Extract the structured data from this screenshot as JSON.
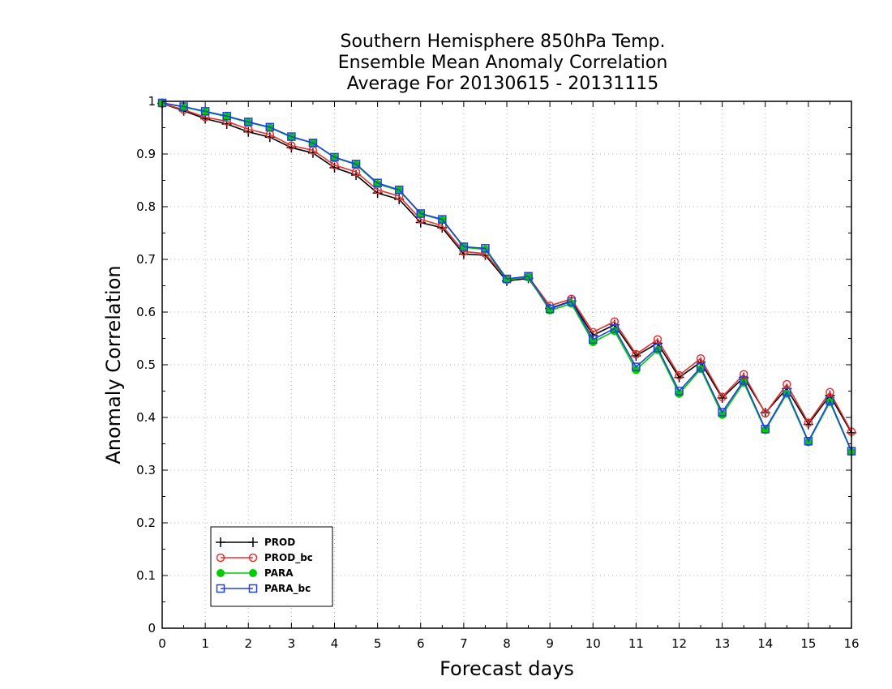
{
  "chart_data": {
    "type": "line",
    "title": [
      "Southern Hemisphere 850hPa Temp.",
      "Ensemble Mean Anomaly Correlation",
      "Average For 20130615 - 20131115"
    ],
    "xlabel": "Forecast days",
    "ylabel": "Anomaly Correlation",
    "xlim": [
      0,
      16
    ],
    "ylim": [
      0,
      1
    ],
    "xticks": [
      0,
      1,
      2,
      3,
      4,
      5,
      6,
      7,
      8,
      9,
      10,
      11,
      12,
      13,
      14,
      15,
      16
    ],
    "yticks": [
      0,
      0.1,
      0.2,
      0.3,
      0.4,
      0.5,
      0.6,
      0.7,
      0.8,
      0.9,
      1
    ],
    "xtick_labels": [
      "0",
      "1",
      "2",
      "3",
      "4",
      "5",
      "6",
      "7",
      "8",
      "9",
      "10",
      "11",
      "12",
      "13",
      "14",
      "15",
      "16"
    ],
    "ytick_labels": [
      "0",
      "0.1",
      "0.2",
      "0.3",
      "0.4",
      "0.5",
      "0.6",
      "0.7",
      "0.8",
      "0.9",
      "1"
    ],
    "grid": true,
    "legend_position": "bottom-left",
    "x": [
      0,
      0.5,
      1,
      1.5,
      2,
      2.5,
      3,
      3.5,
      4,
      4.5,
      5,
      5.5,
      6,
      6.5,
      7,
      7.5,
      8,
      8.5,
      9,
      9.5,
      10,
      10.5,
      11,
      11.5,
      12,
      12.5,
      13,
      13.5,
      14,
      14.5,
      15,
      15.5,
      16
    ],
    "series": [
      {
        "name": "PROD",
        "color": "#000000",
        "marker": "plus",
        "values": [
          0.996,
          0.982,
          0.967,
          0.957,
          0.942,
          0.932,
          0.912,
          0.902,
          0.874,
          0.86,
          0.826,
          0.814,
          0.77,
          0.76,
          0.71,
          0.708,
          0.659,
          0.664,
          0.607,
          0.621,
          0.556,
          0.576,
          0.517,
          0.541,
          0.476,
          0.505,
          0.437,
          0.476,
          0.409,
          0.455,
          0.387,
          0.442,
          0.371
        ]
      },
      {
        "name": "PROD_bc",
        "color": "#e83030",
        "marker": "circle",
        "values": [
          0.996,
          0.984,
          0.97,
          0.962,
          0.947,
          0.937,
          0.916,
          0.907,
          0.879,
          0.866,
          0.832,
          0.82,
          0.776,
          0.764,
          0.715,
          0.711,
          0.662,
          0.667,
          0.612,
          0.625,
          0.562,
          0.582,
          0.52,
          0.548,
          0.48,
          0.512,
          0.439,
          0.482,
          0.408,
          0.463,
          0.39,
          0.448,
          0.373
        ]
      },
      {
        "name": "PARA",
        "color": "#00cc00",
        "marker": "dot",
        "values": [
          0.997,
          0.989,
          0.98,
          0.971,
          0.96,
          0.95,
          0.932,
          0.921,
          0.893,
          0.88,
          0.843,
          0.831,
          0.786,
          0.775,
          0.723,
          0.719,
          0.661,
          0.666,
          0.603,
          0.616,
          0.543,
          0.564,
          0.49,
          0.528,
          0.445,
          0.492,
          0.405,
          0.466,
          0.376,
          0.445,
          0.353,
          0.429,
          0.335
        ]
      },
      {
        "name": "PARA_bc",
        "color": "#2040e0",
        "marker": "square",
        "values": [
          0.997,
          0.99,
          0.981,
          0.972,
          0.961,
          0.951,
          0.933,
          0.921,
          0.894,
          0.881,
          0.845,
          0.832,
          0.787,
          0.776,
          0.724,
          0.721,
          0.663,
          0.668,
          0.606,
          0.62,
          0.548,
          0.569,
          0.496,
          0.532,
          0.45,
          0.495,
          0.41,
          0.47,
          0.378,
          0.448,
          0.355,
          0.432,
          0.336
        ]
      }
    ]
  }
}
